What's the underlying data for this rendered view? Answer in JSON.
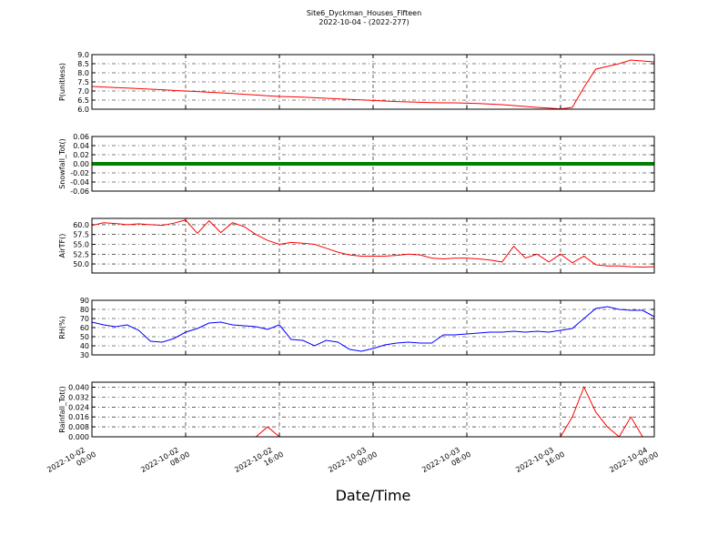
{
  "chart_data": [
    {
      "type": "line",
      "title": "Site6_Dyckman_Houses_Fifteen",
      "subtitle": "2022-10-04 - (2022-277)",
      "ylabel": "P(unitless)",
      "x": [
        "2022-10-02 00:00",
        "2022-10-02 01:00",
        "2022-10-02 02:00",
        "2022-10-02 03:00",
        "2022-10-02 04:00",
        "2022-10-02 05:00",
        "2022-10-02 06:00",
        "2022-10-02 07:00",
        "2022-10-02 08:00",
        "2022-10-02 09:00",
        "2022-10-02 10:00",
        "2022-10-02 11:00",
        "2022-10-02 12:00",
        "2022-10-02 13:00",
        "2022-10-02 14:00",
        "2022-10-02 15:00",
        "2022-10-02 16:00",
        "2022-10-02 17:00",
        "2022-10-02 18:00",
        "2022-10-02 19:00",
        "2022-10-02 20:00",
        "2022-10-02 21:00",
        "2022-10-02 22:00",
        "2022-10-02 23:00",
        "2022-10-03 00:00",
        "2022-10-03 01:00",
        "2022-10-03 02:00",
        "2022-10-03 03:00",
        "2022-10-03 04:00",
        "2022-10-03 05:00",
        "2022-10-03 06:00",
        "2022-10-03 07:00",
        "2022-10-03 08:00",
        "2022-10-03 09:00",
        "2022-10-03 10:00",
        "2022-10-03 11:00",
        "2022-10-03 12:00",
        "2022-10-03 13:00",
        "2022-10-03 14:00",
        "2022-10-03 15:00",
        "2022-10-03 16:00",
        "2022-10-03 17:00",
        "2022-10-03 18:00",
        "2022-10-03 19:00",
        "2022-10-03 20:00",
        "2022-10-03 21:00",
        "2022-10-03 22:00",
        "2022-10-03 23:00",
        "2022-10-04 00:00"
      ],
      "series": [
        {
          "color": "#ff0000",
          "values": [
            7.25,
            7.22,
            7.19,
            7.16,
            7.13,
            7.1,
            7.07,
            7.03,
            7.0,
            6.97,
            6.93,
            6.9,
            6.86,
            6.82,
            6.78,
            6.74,
            6.7,
            6.68,
            6.66,
            6.63,
            6.6,
            6.57,
            6.54,
            6.51,
            6.48,
            6.45,
            6.42,
            6.4,
            6.38,
            6.36,
            6.35,
            6.35,
            6.33,
            6.31,
            6.28,
            6.25,
            6.2,
            6.15,
            6.1,
            6.06,
            6.02,
            6.1,
            7.2,
            8.2,
            8.35,
            8.5,
            8.7,
            8.65,
            8.6
          ]
        }
      ],
      "xlim": [
        "2022-10-02 00:00",
        "2022-10-04 00:00"
      ],
      "xticks": [
        "2022-10-02 00:00",
        "2022-10-02 08:00",
        "2022-10-02 16:00",
        "2022-10-03 00:00",
        "2022-10-03 08:00",
        "2022-10-03 16:00",
        "2022-10-04 00:00"
      ],
      "ylim": [
        6,
        9
      ],
      "yticks": [
        {
          "value": 6,
          "label": "6.0"
        },
        6.5,
        {
          "value": 7,
          "label": "7.0"
        },
        7.5,
        {
          "value": 8,
          "label": "8.0"
        },
        8.5,
        {
          "value": 9,
          "label": "9.0"
        }
      ],
      "grid": true
    },
    {
      "type": "line",
      "ylabel": "Snowfall_Tot()",
      "x": [
        "2022-10-02 00:00",
        "2022-10-02 01:00",
        "2022-10-02 02:00",
        "2022-10-02 03:00",
        "2022-10-02 04:00",
        "2022-10-02 05:00",
        "2022-10-02 06:00",
        "2022-10-02 07:00",
        "2022-10-02 08:00",
        "2022-10-02 09:00",
        "2022-10-02 10:00",
        "2022-10-02 11:00",
        "2022-10-02 12:00",
        "2022-10-02 13:00",
        "2022-10-02 14:00",
        "2022-10-02 15:00",
        "2022-10-02 16:00",
        "2022-10-02 17:00",
        "2022-10-02 18:00",
        "2022-10-02 19:00",
        "2022-10-02 20:00",
        "2022-10-02 21:00",
        "2022-10-02 22:00",
        "2022-10-02 23:00",
        "2022-10-03 00:00",
        "2022-10-03 01:00",
        "2022-10-03 02:00",
        "2022-10-03 03:00",
        "2022-10-03 04:00",
        "2022-10-03 05:00",
        "2022-10-03 06:00",
        "2022-10-03 07:00",
        "2022-10-03 08:00",
        "2022-10-03 09:00",
        "2022-10-03 10:00",
        "2022-10-03 11:00",
        "2022-10-03 12:00",
        "2022-10-03 13:00",
        "2022-10-03 14:00",
        "2022-10-03 15:00",
        "2022-10-03 16:00",
        "2022-10-03 17:00",
        "2022-10-03 18:00",
        "2022-10-03 19:00",
        "2022-10-03 20:00",
        "2022-10-03 21:00",
        "2022-10-03 22:00",
        "2022-10-03 23:00",
        "2022-10-04 00:00"
      ],
      "series": [
        {
          "color": "#008000",
          "values": [
            0,
            0,
            0,
            0,
            0,
            0,
            0,
            0,
            0,
            0,
            0,
            0,
            0,
            0,
            0,
            0,
            0,
            0,
            0,
            0,
            0,
            0,
            0,
            0,
            0,
            0,
            0,
            0,
            0,
            0,
            0,
            0,
            0,
            0,
            0,
            0,
            0,
            0,
            0,
            0,
            0,
            0,
            0,
            0,
            0,
            0,
            0,
            0,
            0
          ]
        }
      ],
      "xlim": [
        "2022-10-02 00:00",
        "2022-10-04 00:00"
      ],
      "xticks": [
        "2022-10-02 00:00",
        "2022-10-02 08:00",
        "2022-10-02 16:00",
        "2022-10-03 00:00",
        "2022-10-03 08:00",
        "2022-10-03 16:00",
        "2022-10-04 00:00"
      ],
      "ylim": [
        -0.06,
        0.06
      ],
      "yticks": [
        -0.06,
        -0.04,
        -0.02,
        {
          "value": 0,
          "label": "0.00"
        },
        0.02,
        0.04,
        0.06
      ],
      "grid": true
    },
    {
      "type": "line",
      "ylabel": "AirTF()",
      "x": [
        "2022-10-02 00:00",
        "2022-10-02 01:00",
        "2022-10-02 02:00",
        "2022-10-02 03:00",
        "2022-10-02 04:00",
        "2022-10-02 05:00",
        "2022-10-02 06:00",
        "2022-10-02 07:00",
        "2022-10-02 08:00",
        "2022-10-02 09:00",
        "2022-10-02 10:00",
        "2022-10-02 11:00",
        "2022-10-02 12:00",
        "2022-10-02 13:00",
        "2022-10-02 14:00",
        "2022-10-02 15:00",
        "2022-10-02 16:00",
        "2022-10-02 17:00",
        "2022-10-02 18:00",
        "2022-10-02 19:00",
        "2022-10-02 20:00",
        "2022-10-02 21:00",
        "2022-10-02 22:00",
        "2022-10-02 23:00",
        "2022-10-03 00:00",
        "2022-10-03 01:00",
        "2022-10-03 02:00",
        "2022-10-03 03:00",
        "2022-10-03 04:00",
        "2022-10-03 05:00",
        "2022-10-03 06:00",
        "2022-10-03 07:00",
        "2022-10-03 08:00",
        "2022-10-03 09:00",
        "2022-10-03 10:00",
        "2022-10-03 11:00",
        "2022-10-03 12:00",
        "2022-10-03 13:00",
        "2022-10-03 14:00",
        "2022-10-03 15:00",
        "2022-10-03 16:00",
        "2022-10-03 17:00",
        "2022-10-03 18:00",
        "2022-10-03 19:00",
        "2022-10-03 20:00",
        "2022-10-03 21:00",
        "2022-10-03 22:00",
        "2022-10-03 23:00",
        "2022-10-04 00:00"
      ],
      "series": [
        {
          "color": "#ff0000",
          "values": [
            59.8,
            60.5,
            60.3,
            60.0,
            60.2,
            60.0,
            59.8,
            60.4,
            61.2,
            57.8,
            61.0,
            58.0,
            60.5,
            59.5,
            57.5,
            56.0,
            55.0,
            55.5,
            55.3,
            55.0,
            54.0,
            53.0,
            52.3,
            52.0,
            52.0,
            52.0,
            52.2,
            52.5,
            52.3,
            51.5,
            51.3,
            51.5,
            51.5,
            51.3,
            51.0,
            50.5,
            54.5,
            51.5,
            52.5,
            50.5,
            52.5,
            50.3,
            52.0,
            49.8,
            49.5,
            49.5,
            49.3,
            49.2,
            49.3
          ]
        }
      ],
      "xlim": [
        "2022-10-02 00:00",
        "2022-10-04 00:00"
      ],
      "xticks": [
        "2022-10-02 00:00",
        "2022-10-02 08:00",
        "2022-10-02 16:00",
        "2022-10-03 00:00",
        "2022-10-03 08:00",
        "2022-10-03 16:00",
        "2022-10-04 00:00"
      ],
      "ylim": [
        47.7,
        61.6
      ],
      "yticks": [
        {
          "value": 50,
          "label": "50.0"
        },
        52.5,
        {
          "value": 55,
          "label": "55.0"
        },
        57.5,
        {
          "value": 60,
          "label": "60.0"
        }
      ],
      "grid": true
    },
    {
      "type": "line",
      "ylabel": "RH(%)",
      "x": [
        "2022-10-02 00:00",
        "2022-10-02 01:00",
        "2022-10-02 02:00",
        "2022-10-02 03:00",
        "2022-10-02 04:00",
        "2022-10-02 05:00",
        "2022-10-02 06:00",
        "2022-10-02 07:00",
        "2022-10-02 08:00",
        "2022-10-02 09:00",
        "2022-10-02 10:00",
        "2022-10-02 11:00",
        "2022-10-02 12:00",
        "2022-10-02 13:00",
        "2022-10-02 14:00",
        "2022-10-02 15:00",
        "2022-10-02 16:00",
        "2022-10-02 17:00",
        "2022-10-02 18:00",
        "2022-10-02 19:00",
        "2022-10-02 20:00",
        "2022-10-02 21:00",
        "2022-10-02 22:00",
        "2022-10-02 23:00",
        "2022-10-03 00:00",
        "2022-10-03 01:00",
        "2022-10-03 02:00",
        "2022-10-03 03:00",
        "2022-10-03 04:00",
        "2022-10-03 05:00",
        "2022-10-03 06:00",
        "2022-10-03 07:00",
        "2022-10-03 08:00",
        "2022-10-03 09:00",
        "2022-10-03 10:00",
        "2022-10-03 11:00",
        "2022-10-03 12:00",
        "2022-10-03 13:00",
        "2022-10-03 14:00",
        "2022-10-03 15:00",
        "2022-10-03 16:00",
        "2022-10-03 17:00",
        "2022-10-03 18:00",
        "2022-10-03 19:00",
        "2022-10-03 20:00",
        "2022-10-03 21:00",
        "2022-10-03 22:00",
        "2022-10-03 23:00",
        "2022-10-04 00:00"
      ],
      "series": [
        {
          "color": "#0000ff",
          "values": [
            66,
            63,
            61,
            63,
            57,
            45,
            44,
            48,
            55,
            59,
            65,
            66,
            63,
            62,
            61,
            58,
            63,
            47,
            46,
            40,
            46,
            44,
            36,
            34,
            37,
            41,
            43,
            44,
            43,
            43,
            52,
            52,
            53,
            54,
            55,
            55,
            56,
            55,
            56,
            55,
            57,
            59,
            70,
            81,
            83,
            80,
            79,
            79,
            72
          ]
        }
      ],
      "xlim": [
        "2022-10-02 00:00",
        "2022-10-04 00:00"
      ],
      "xticks": [
        "2022-10-02 00:00",
        "2022-10-02 08:00",
        "2022-10-02 16:00",
        "2022-10-03 00:00",
        "2022-10-03 08:00",
        "2022-10-03 16:00",
        "2022-10-04 00:00"
      ],
      "ylim": [
        30,
        90
      ],
      "yticks": [
        30,
        40,
        50,
        60,
        70,
        80,
        90
      ],
      "grid": true
    },
    {
      "type": "line",
      "ylabel": "Rainfall_Tot()",
      "xlabel": "Date/Time",
      "x": [
        "2022-10-02 00:00",
        "2022-10-02 01:00",
        "2022-10-02 02:00",
        "2022-10-02 03:00",
        "2022-10-02 04:00",
        "2022-10-02 05:00",
        "2022-10-02 06:00",
        "2022-10-02 07:00",
        "2022-10-02 08:00",
        "2022-10-02 09:00",
        "2022-10-02 10:00",
        "2022-10-02 11:00",
        "2022-10-02 12:00",
        "2022-10-02 13:00",
        "2022-10-02 14:00",
        "2022-10-02 15:00",
        "2022-10-02 16:00",
        "2022-10-02 17:00",
        "2022-10-02 18:00",
        "2022-10-02 19:00",
        "2022-10-02 20:00",
        "2022-10-02 21:00",
        "2022-10-02 22:00",
        "2022-10-02 23:00",
        "2022-10-03 00:00",
        "2022-10-03 01:00",
        "2022-10-03 02:00",
        "2022-10-03 03:00",
        "2022-10-03 04:00",
        "2022-10-03 05:00",
        "2022-10-03 06:00",
        "2022-10-03 07:00",
        "2022-10-03 08:00",
        "2022-10-03 09:00",
        "2022-10-03 10:00",
        "2022-10-03 11:00",
        "2022-10-03 12:00",
        "2022-10-03 13:00",
        "2022-10-03 14:00",
        "2022-10-03 15:00",
        "2022-10-03 16:00",
        "2022-10-03 17:00",
        "2022-10-03 18:00",
        "2022-10-03 19:00",
        "2022-10-03 20:00",
        "2022-10-03 21:00",
        "2022-10-03 22:00",
        "2022-10-03 23:00",
        "2022-10-04 00:00"
      ],
      "series": [
        {
          "color": "#ff0000",
          "values": [
            0,
            0,
            0,
            0,
            0,
            0,
            0,
            0,
            0,
            0,
            0,
            0,
            0,
            0,
            0,
            0.008,
            0,
            0,
            0,
            0,
            0,
            0,
            0,
            0,
            0,
            0,
            0,
            0,
            0,
            0,
            0,
            0,
            0,
            0,
            0,
            0,
            0,
            0,
            0,
            0,
            0,
            0.016,
            0.04,
            0.02,
            0.008,
            0,
            0.016,
            0,
            0
          ]
        }
      ],
      "xlim": [
        "2022-10-02 00:00",
        "2022-10-04 00:00"
      ],
      "xticks": [
        "2022-10-02 00:00",
        "2022-10-02 08:00",
        "2022-10-02 16:00",
        "2022-10-03 00:00",
        "2022-10-03 08:00",
        "2022-10-03 16:00",
        "2022-10-04 00:00"
      ],
      "ylim": [
        0,
        0.044
      ],
      "yticks": [
        {
          "value": 0,
          "label": "0.000"
        },
        0.008,
        0.016,
        0.024,
        0.032,
        {
          "value": 0.04,
          "label": "0.040"
        }
      ],
      "grid": true
    }
  ]
}
